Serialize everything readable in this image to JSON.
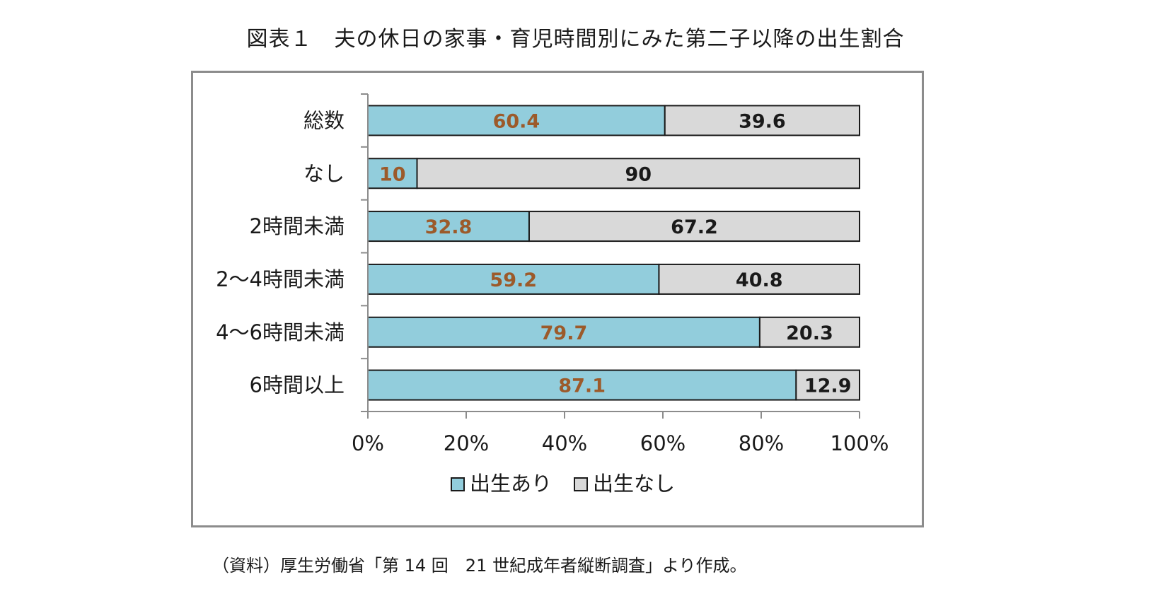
{
  "title": "図表１　夫の休日の家事・育児時間別にみた第二子以降の出生割合",
  "source": "（資料）厚生労働省「第 14 回　21 世紀成年者縦断調査」より作成。",
  "colors": {
    "birth": "#92cddc",
    "no_birth": "#d9d9d9",
    "birth_label": "#9c5a2a",
    "no_birth_label": "#1a1a1a"
  },
  "chart_data": {
    "type": "bar",
    "orientation": "horizontal",
    "stacked": true,
    "categories": [
      "総数",
      "なし",
      "2時間未満",
      "2～4時間未満",
      "4～6時間未満",
      "6時間以上"
    ],
    "series": [
      {
        "name": "出生あり",
        "values": [
          60.4,
          10,
          32.8,
          59.2,
          79.7,
          87.1
        ],
        "value_labels": [
          "60.4",
          "10",
          "32.8",
          "59.2",
          "79.7",
          "87.1"
        ]
      },
      {
        "name": "出生なし",
        "values": [
          39.6,
          90,
          67.2,
          40.8,
          20.3,
          12.9
        ],
        "value_labels": [
          "39.6",
          "90",
          "67.2",
          "40.8",
          "20.3",
          "12.9"
        ]
      }
    ],
    "xlim": [
      0,
      100
    ],
    "x_ticks": [
      0,
      20,
      40,
      60,
      80,
      100
    ],
    "x_tick_labels": [
      "0%",
      "20%",
      "40%",
      "60%",
      "80%",
      "100%"
    ],
    "grid": false,
    "legend_position": "bottom"
  }
}
